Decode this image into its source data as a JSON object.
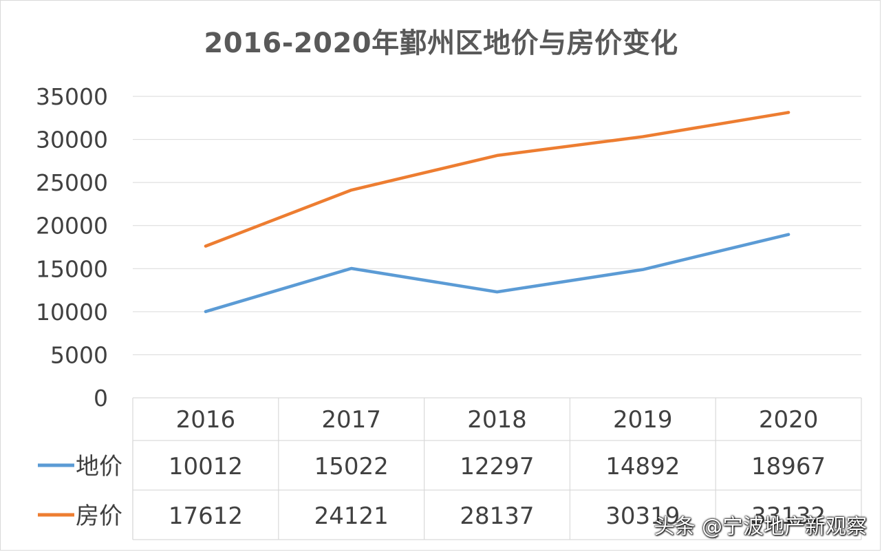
{
  "chart_data": {
    "type": "line",
    "title": "2016-2020年鄞州区地价与房价变化",
    "categories": [
      "2016",
      "2017",
      "2018",
      "2019",
      "2020"
    ],
    "series": [
      {
        "name": "地价",
        "color": "#5b9bd5",
        "values": [
          10012,
          15022,
          12297,
          14892,
          18967
        ]
      },
      {
        "name": "房价",
        "color": "#ed7d31",
        "values": [
          17612,
          24121,
          28137,
          30319,
          33132
        ]
      }
    ],
    "y_ticks": [
      "0",
      "5000",
      "10000",
      "15000",
      "20000",
      "25000",
      "30000",
      "35000"
    ],
    "ylim": [
      0,
      35000
    ],
    "grid": true,
    "legend": "data-table-rows",
    "data_table": true
  },
  "watermark": "头条 @宁波地产新观察"
}
